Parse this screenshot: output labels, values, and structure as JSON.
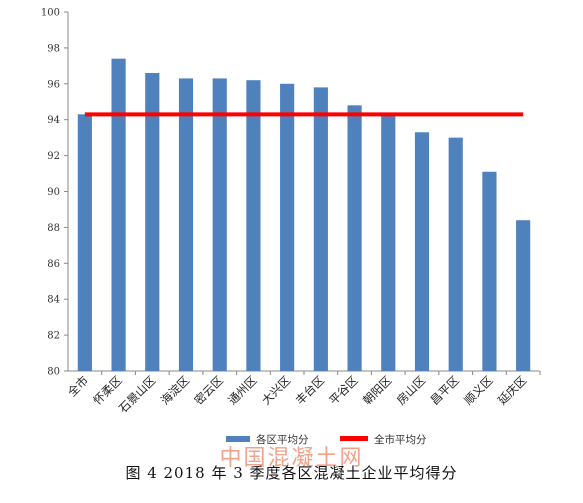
{
  "colors": {
    "bar": "#4f81bd",
    "avg_line": "#ff0000",
    "axis": "#888888"
  },
  "caption": "图 4 2018 年 3 季度各区混凝土企业平均得分",
  "watermark": "中国混凝土网",
  "chart_data": {
    "type": "bar",
    "title": "",
    "xlabel": "",
    "ylabel": "",
    "categories": [
      "全市",
      "怀柔区",
      "石景山区",
      "海淀区",
      "密云区",
      "通州区",
      "大兴区",
      "丰台区",
      "平谷区",
      "朝阳区",
      "房山区",
      "昌平区",
      "顺义区",
      "延庆区"
    ],
    "series": [
      {
        "name": "各区平均分",
        "type": "bar",
        "values": [
          94.3,
          97.4,
          96.6,
          96.3,
          96.3,
          96.2,
          96.0,
          95.8,
          94.8,
          94.4,
          93.3,
          93.0,
          91.1,
          88.4
        ]
      },
      {
        "name": "全市平均分",
        "type": "line",
        "value": 94.3
      }
    ],
    "ylim": [
      80,
      100
    ],
    "yticks": [
      80,
      82,
      84,
      86,
      88,
      90,
      92,
      94,
      96,
      98,
      100
    ],
    "grid": false,
    "legend": "bottom"
  }
}
